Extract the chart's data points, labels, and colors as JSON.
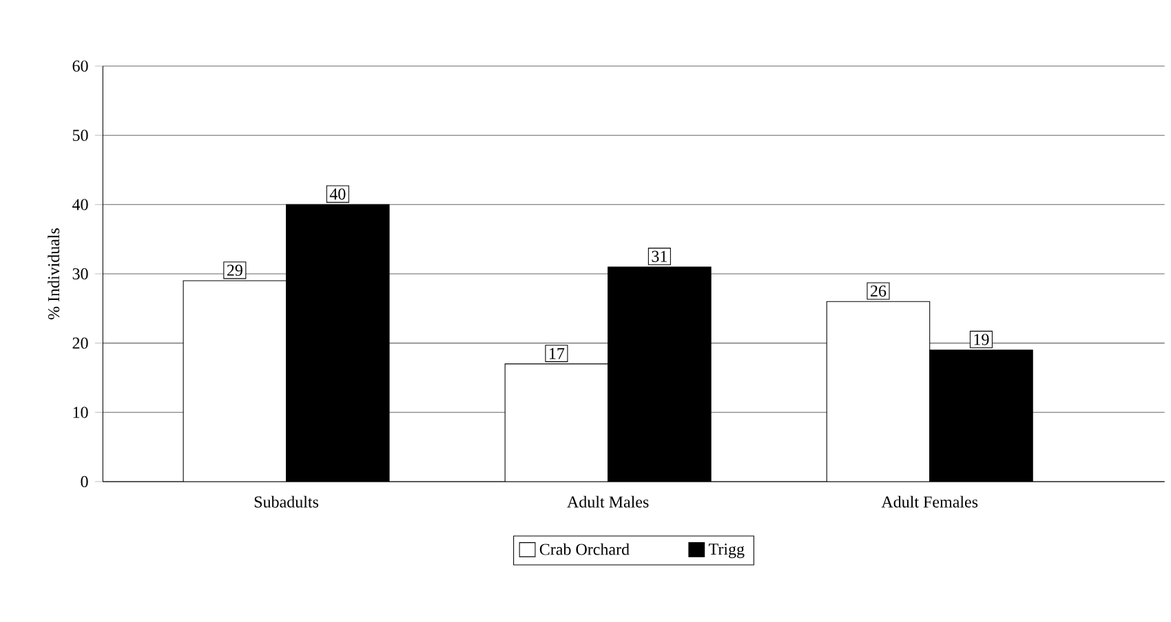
{
  "chart_data": {
    "type": "bar",
    "ylabel": "% Individuals",
    "categories": [
      "Subadults",
      "Adult Males",
      "Adult Females"
    ],
    "series": [
      {
        "name": "Crab Orchard",
        "color": "#ffffff",
        "values": [
          29,
          17,
          26
        ]
      },
      {
        "name": "Trigg",
        "color": "#000000",
        "values": [
          40,
          31,
          19
        ]
      }
    ],
    "ylim": [
      0,
      60
    ],
    "yticks": [
      0,
      10,
      20,
      30,
      40,
      50,
      60
    ],
    "grid": "y",
    "legend": "bottom",
    "data_labels": true
  }
}
